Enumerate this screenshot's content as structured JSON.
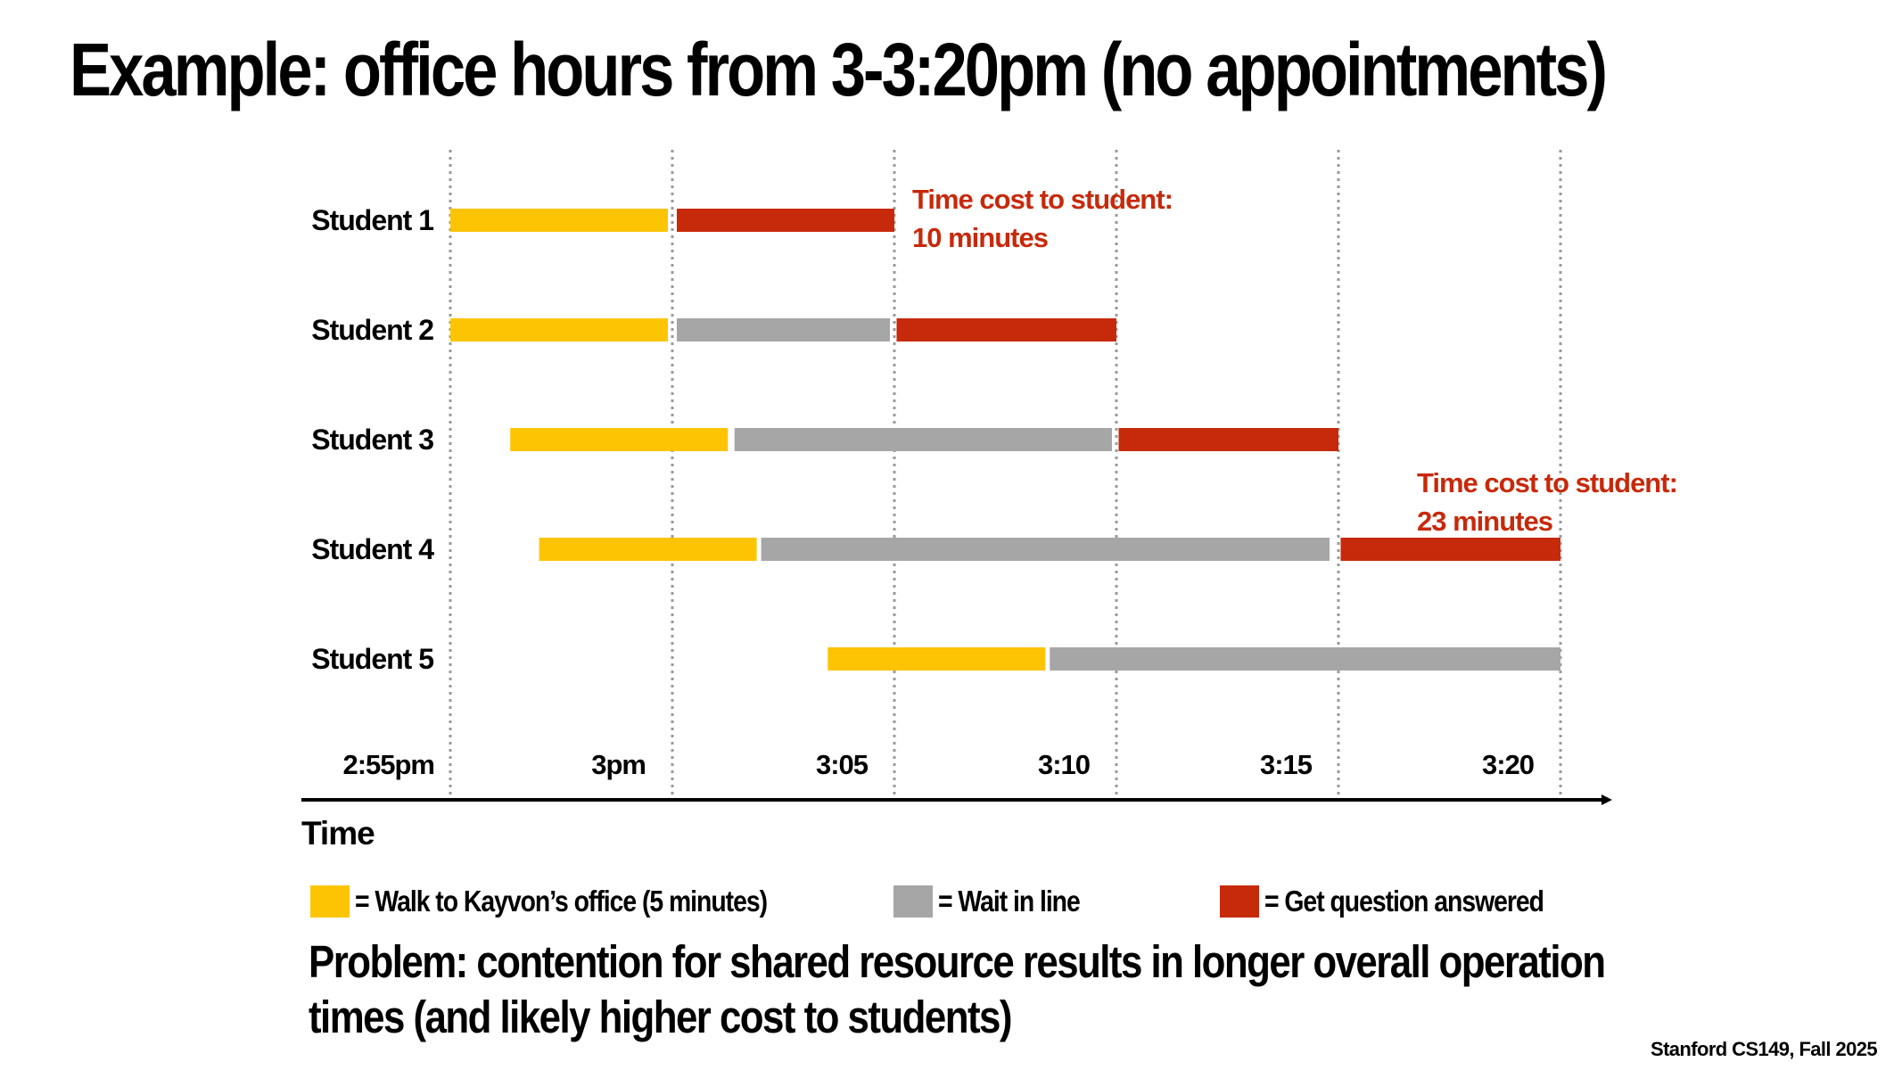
{
  "slide": {
    "title": "Example: office hours from 3-3:20pm (no appointments)",
    "problem_line1": "Problem: contention for shared resource results in longer overall operation",
    "problem_line2": "times (and likely higher cost to students)",
    "footer": "Stanford CS149, Fall 2025"
  },
  "chart_data": {
    "type": "gantt",
    "xlabel": "Time",
    "x_unit": "minutes after 2:55pm",
    "ticks": [
      {
        "label": "2:55pm",
        "min": 0
      },
      {
        "label": "3pm",
        "min": 5
      },
      {
        "label": "3:05",
        "min": 10
      },
      {
        "label": "3:10",
        "min": 15
      },
      {
        "label": "3:15",
        "min": 20
      },
      {
        "label": "3:20",
        "min": 25
      }
    ],
    "activity_types": [
      {
        "key": "walk",
        "label": "= Walk to Kayvon’s office (5 minutes)",
        "color": "#FDC404"
      },
      {
        "key": "wait",
        "label": "= Wait in line",
        "color": "#A5A6A5"
      },
      {
        "key": "answer",
        "label": "= Get question answered",
        "color": "#C7290B"
      }
    ],
    "rows": [
      {
        "name": "Student 1",
        "segments": [
          {
            "type": "walk",
            "start": 0,
            "end": 4.9
          },
          {
            "type": "answer",
            "start": 5.1,
            "end": 10
          }
        ]
      },
      {
        "name": "Student 2",
        "segments": [
          {
            "type": "walk",
            "start": 0,
            "end": 4.9
          },
          {
            "type": "wait",
            "start": 5.1,
            "end": 9.9
          },
          {
            "type": "answer",
            "start": 10.05,
            "end": 15
          }
        ]
      },
      {
        "name": "Student 3",
        "segments": [
          {
            "type": "walk",
            "start": 1.35,
            "end": 6.25
          },
          {
            "type": "wait",
            "start": 6.4,
            "end": 14.9
          },
          {
            "type": "answer",
            "start": 15.05,
            "end": 20
          }
        ]
      },
      {
        "name": "Student 4",
        "segments": [
          {
            "type": "walk",
            "start": 2,
            "end": 6.9
          },
          {
            "type": "wait",
            "start": 7.0,
            "end": 19.8
          },
          {
            "type": "answer",
            "start": 20.05,
            "end": 25
          }
        ]
      },
      {
        "name": "Student 5",
        "segments": [
          {
            "type": "walk",
            "start": 8.5,
            "end": 13.4
          },
          {
            "type": "wait",
            "start": 13.5,
            "end": 25
          }
        ]
      }
    ],
    "annotations": [
      {
        "row": 0,
        "line1": "Time cost to student:",
        "line2": "10 minutes"
      },
      {
        "row": 3,
        "line1": "Time cost to student:",
        "line2": "23 minutes"
      }
    ]
  }
}
